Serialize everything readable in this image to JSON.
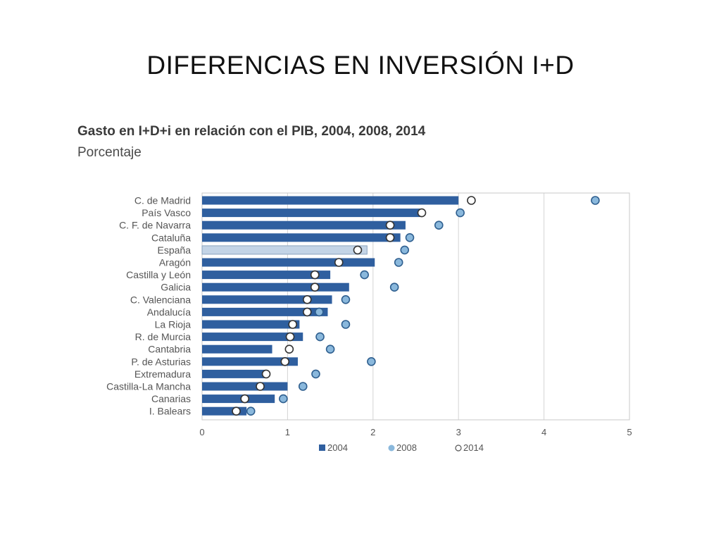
{
  "slide": {
    "title": "DIFERENCIAS EN INVERSIÓN I+D"
  },
  "chart_data": {
    "type": "bar",
    "orientation": "horizontal",
    "title": "Gasto en I+D+i en relación con el PIB, 2004, 2008, 2014",
    "subtitle": "Porcentaje",
    "xlabel": "",
    "ylabel": "",
    "xlim": [
      0,
      5
    ],
    "xticks": [
      0,
      1,
      2,
      3,
      4,
      5
    ],
    "grid": true,
    "legend_position": "bottom",
    "categories": [
      "C. de Madrid",
      "País Vasco",
      "C. F. de Navarra",
      "Cataluña",
      "España",
      "Aragón",
      "Castilla y León",
      "Galicia",
      "C. Valenciana",
      "Andalucía",
      "La Rioja",
      "R. de Murcia",
      "Cantabria",
      "P. de Asturias",
      "Extremadura",
      "Castilla-La Mancha",
      "Canarias",
      "I. Balears"
    ],
    "highlight_category": "España",
    "series": [
      {
        "name": "2004",
        "marker": "bar",
        "color": "#2f5f9f",
        "highlight_color": "#c3d4e6",
        "values": [
          3.0,
          2.55,
          2.38,
          2.32,
          1.93,
          2.02,
          1.5,
          1.72,
          1.52,
          1.47,
          1.14,
          1.18,
          0.82,
          1.12,
          0.75,
          1.0,
          0.85,
          0.52
        ]
      },
      {
        "name": "2008",
        "marker": "filled-circle",
        "color": "#8ab8dc",
        "values": [
          4.6,
          3.02,
          2.77,
          2.43,
          2.37,
          2.3,
          1.9,
          2.25,
          1.68,
          1.37,
          1.68,
          1.38,
          1.5,
          1.98,
          1.33,
          1.18,
          0.95,
          0.57
        ]
      },
      {
        "name": "2014",
        "marker": "open-circle",
        "color": "#ffffff",
        "values": [
          3.15,
          2.57,
          2.2,
          2.2,
          1.82,
          1.6,
          1.32,
          1.32,
          1.23,
          1.23,
          1.06,
          1.03,
          1.02,
          0.97,
          0.75,
          0.68,
          0.5,
          0.4
        ]
      }
    ]
  }
}
